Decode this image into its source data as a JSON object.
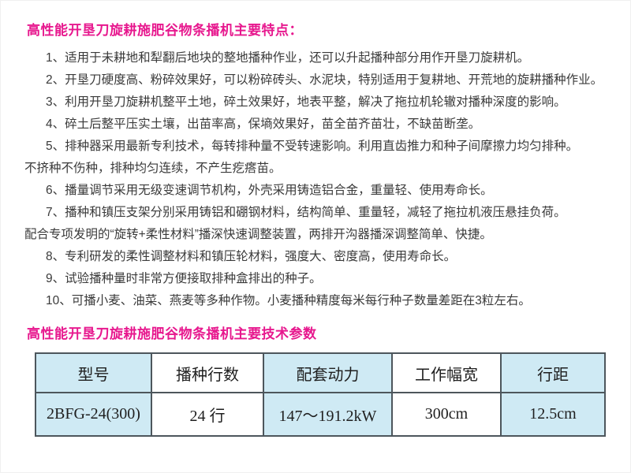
{
  "headings": {
    "features_title": "高性能开垦刀旋耕施肥谷物条播机主要特点：",
    "specs_title": "高性能开垦刀旋耕施肥谷物条播机主要技术参数"
  },
  "features": {
    "lines": [
      {
        "text": "1、适用于未耕地和犁翻后地块的整地播种作业，还可以升起播种部分用作开垦刀旋耕机。"
      },
      {
        "text": "2、开垦刀硬度高、粉碎效果好，可以粉碎砖头、水泥块，特别适用于复耕地、开荒地的旋耕播种作业。"
      },
      {
        "text": "3、利用开垦刀旋耕机整平土地，碎土效果好，地表平整，解决了拖拉机轮辙对播种深度的影响。"
      },
      {
        "text": "4、碎土后整平压实土壤，出苗率高，保墒效果好，苗全苗齐苗壮，不缺苗断垄。"
      },
      {
        "text": "5、排种器采用最新专利技术，每转排种量不受转速影响。利用直齿推力和种子间摩擦力均匀排种。"
      },
      {
        "text": "不挤种不伤种，排种均匀连续，不产生疙瘩苗。"
      },
      {
        "text": "6、播量调节采用无级变速调节机构，外壳采用铸造铝合金，重量轻、使用寿命长。"
      },
      {
        "text": "7、播种和镇压支架分别采用铸铝和硼钢材料，结构简单、重量轻，减轻了拖拉机液压悬挂负荷。"
      },
      {
        "text": "配合专项发明的“旋转+柔性材料”播深快速调整装置，两排开沟器播深调整简单、快捷。"
      },
      {
        "text": "8、专利研发的柔性调整材料和镇压轮材料，强度大、密度高，使用寿命长。"
      },
      {
        "text": "9、试验播种量时非常方便接取排种盒排出的种子。"
      },
      {
        "text": "10、可播小麦、油菜、燕麦等多种作物。小麦播种精度每米每行种子数量差距在3粒左右。"
      }
    ]
  },
  "specs_table": {
    "headers": [
      "型号",
      "播种行数",
      "配套动力",
      "工作幅宽",
      "行距"
    ],
    "row": [
      "2BFG-24(300)",
      "24 行",
      "147～191.2kW",
      "300cm",
      "12.5cm"
    ]
  },
  "colors": {
    "heading_pink": "#e7188e",
    "body_text": "#3a3a3a",
    "table_cell_blue": "#cfeaf4",
    "table_border": "#4d565c"
  }
}
